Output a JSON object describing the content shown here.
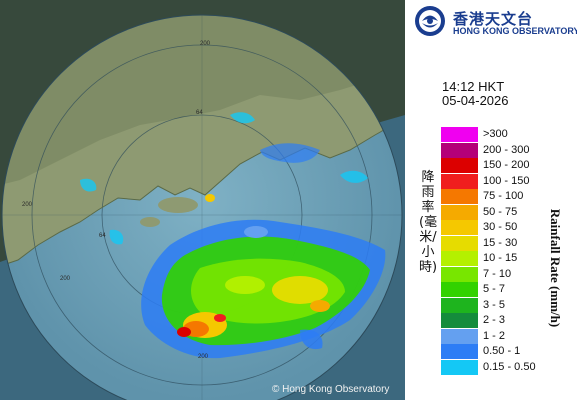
{
  "logo": {
    "name_cn": "香港天文台",
    "name_en": "HONG KONG OBSERVATORY",
    "icon": "hko-logo-icon"
  },
  "timestamp": {
    "time": "14:12 HKT",
    "date": "05-04-2026"
  },
  "legend": {
    "title_cn": "降雨率(毫米/小時)",
    "title_en": "Rainfall Rate (mm/h)",
    "items": [
      {
        "label": ">300",
        "color": "#f000f0"
      },
      {
        "label": "200 - 300",
        "color": "#b40078"
      },
      {
        "label": "150 - 200",
        "color": "#dc0000"
      },
      {
        "label": "100 - 150",
        "color": "#f01e1e"
      },
      {
        "label": "75 - 100",
        "color": "#f57800"
      },
      {
        "label": "50 - 75",
        "color": "#f5aa00"
      },
      {
        "label": "30 - 50",
        "color": "#f5c800"
      },
      {
        "label": "15 - 30",
        "color": "#e6dc00"
      },
      {
        "label": "10 - 15",
        "color": "#b4f000"
      },
      {
        "label": "7 - 10",
        "color": "#78e600"
      },
      {
        "label": "5 - 7",
        "color": "#32d200"
      },
      {
        "label": "3 - 5",
        "color": "#1eb41e"
      },
      {
        "label": "2 - 3",
        "color": "#148c3c"
      },
      {
        "label": "1 - 2",
        "color": "#64a0f0"
      },
      {
        "label": "0.50 - 1",
        "color": "#2d7df5"
      },
      {
        "label": "0.15 - 0.50",
        "color": "#14c8f5"
      }
    ]
  },
  "map": {
    "range_labels": [
      "200",
      "64",
      "200",
      "200",
      "64",
      "200"
    ],
    "copyright": "© Hong Kong Observatory"
  }
}
